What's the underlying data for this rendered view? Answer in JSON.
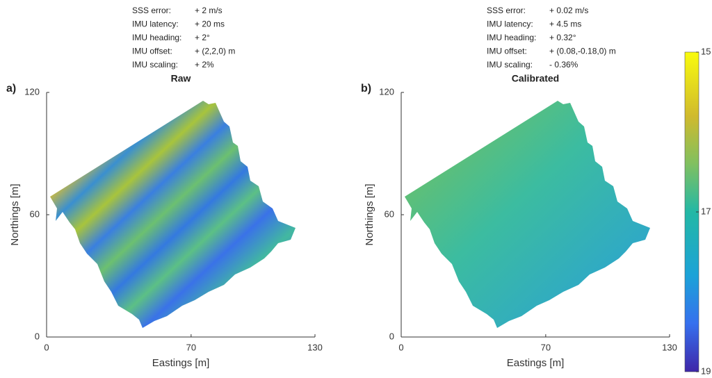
{
  "chart_data": [
    {
      "type": "surface",
      "panel": "a)",
      "title": "Raw",
      "annotations": [
        {
          "label": "SSS error:",
          "value": "+ 2 m/s"
        },
        {
          "label": "IMU latency:",
          "value": "+ 20 ms"
        },
        {
          "label": "IMU heading:",
          "value": "+ 2°"
        },
        {
          "label": "IMU offset:",
          "value": "+ (2,2,0) m"
        },
        {
          "label": "IMU scaling:",
          "value": "+ 2%"
        }
      ],
      "xlabel": "Eastings [m]",
      "ylabel": "Northings [m]",
      "xlim": [
        0,
        130
      ],
      "xticks": [
        0,
        70,
        130
      ],
      "ylim": [
        0,
        120
      ],
      "yticks": [
        0,
        60,
        120
      ]
    },
    {
      "type": "surface",
      "panel": "b)",
      "title": "Calibrated",
      "annotations": [
        {
          "label": "SSS error:",
          "value": "+ 0.02 m/s"
        },
        {
          "label": "IMU latency:",
          "value": "+ 4.5 ms"
        },
        {
          "label": "IMU heading:",
          "value": "+ 0.32°"
        },
        {
          "label": "IMU offset:",
          "value": "+ (0.08,-0.18,0) m"
        },
        {
          "label": "IMU scaling:",
          "value": "- 0.36%"
        }
      ],
      "xlabel": "Eastings [m]",
      "ylabel": "Northings [m]",
      "xlim": [
        0,
        130
      ],
      "xticks": [
        0,
        70,
        130
      ],
      "ylim": [
        0,
        120
      ],
      "yticks": [
        0,
        60,
        120
      ]
    }
  ],
  "colorbar": {
    "lim": [
      15,
      19
    ],
    "ticks": [
      15,
      17,
      19
    ]
  }
}
